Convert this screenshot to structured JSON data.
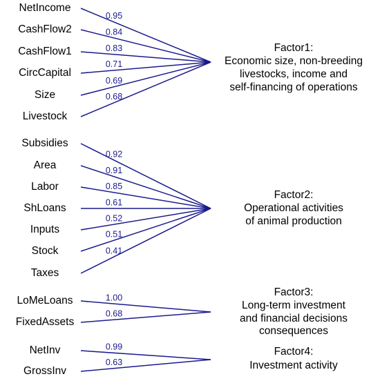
{
  "factors": [
    {
      "label_lines": [
        "Factor1:",
        "Economic size, non-breeding",
        "livestocks, income and",
        "self-financing of operations"
      ],
      "items": [
        {
          "name": "NetIncome",
          "loading": "0.95"
        },
        {
          "name": "CashFlow2",
          "loading": "0.84"
        },
        {
          "name": "CashFlow1",
          "loading": "0.83"
        },
        {
          "name": "CircCapital",
          "loading": "0.71"
        },
        {
          "name": "Size",
          "loading": "0.69"
        },
        {
          "name": "Livestock",
          "loading": "0.68"
        }
      ]
    },
    {
      "label_lines": [
        "Factor2:",
        "Operational activities",
        "of animal production"
      ],
      "items": [
        {
          "name": "Subsidies",
          "loading": "0.92"
        },
        {
          "name": "Area",
          "loading": "0.91"
        },
        {
          "name": "Labor",
          "loading": "0.85"
        },
        {
          "name": "ShLoans",
          "loading": "0.61"
        },
        {
          "name": "Inputs",
          "loading": "0.52"
        },
        {
          "name": "Stock",
          "loading": "0.51"
        },
        {
          "name": "Taxes",
          "loading": "0.41"
        }
      ]
    },
    {
      "label_lines": [
        "Factor3:",
        "Long-term investment",
        "and financial decisions",
        "consequences"
      ],
      "items": [
        {
          "name": "LoMeLoans",
          "loading": "1.00"
        },
        {
          "name": "FixedAssets",
          "loading": "0.68"
        }
      ]
    },
    {
      "label_lines": [
        "Factor4:",
        "Investment activity"
      ],
      "items": [
        {
          "name": "NetInv",
          "loading": "0.99"
        },
        {
          "name": "GrossInv",
          "loading": "0.63"
        }
      ]
    }
  ]
}
